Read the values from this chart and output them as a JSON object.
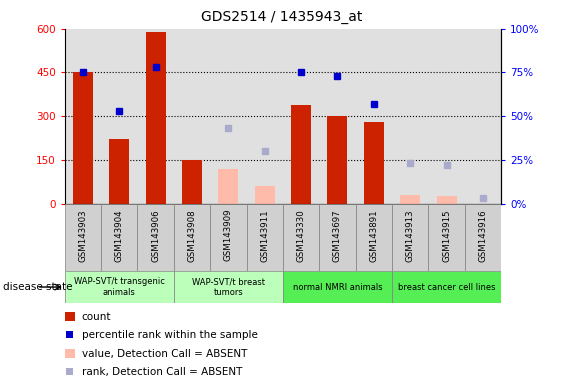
{
  "title": "GDS2514 / 1435943_at",
  "samples": [
    "GSM143903",
    "GSM143904",
    "GSM143906",
    "GSM143908",
    "GSM143909",
    "GSM143911",
    "GSM143330",
    "GSM143697",
    "GSM143891",
    "GSM143913",
    "GSM143915",
    "GSM143916"
  ],
  "count": [
    450,
    220,
    590,
    150,
    null,
    null,
    340,
    300,
    280,
    null,
    null,
    null
  ],
  "count_absent": [
    null,
    null,
    null,
    null,
    120,
    60,
    null,
    null,
    null,
    30,
    25,
    null
  ],
  "percentile_rank": [
    75,
    53,
    78,
    null,
    null,
    null,
    75,
    73,
    57,
    null,
    null,
    null
  ],
  "percentile_rank_absent": [
    null,
    null,
    null,
    null,
    43,
    30,
    null,
    null,
    null,
    23,
    22,
    3
  ],
  "group_starts": [
    0,
    3,
    6,
    9
  ],
  "group_ends": [
    3,
    6,
    9,
    12
  ],
  "group_colors": [
    "#bbffbb",
    "#bbffbb",
    "#55ee55",
    "#55ee55"
  ],
  "group_labels": [
    "WAP-SVT/t transgenic\nanimals",
    "WAP-SVT/t breast\ntumors",
    "normal NMRI animals",
    "breast cancer cell lines"
  ],
  "ylim_left": [
    0,
    600
  ],
  "ylim_right": [
    0,
    100
  ],
  "yticks_left": [
    0,
    150,
    300,
    450,
    600
  ],
  "yticks_right": [
    0,
    25,
    50,
    75,
    100
  ],
  "ytick_labels_right": [
    "0%",
    "25%",
    "50%",
    "75%",
    "100%"
  ],
  "bar_color": "#cc2200",
  "bar_absent_color": "#ffbbaa",
  "dot_color": "#0000cc",
  "dot_absent_color": "#aaaacc",
  "bg_color": "#e0e0e0",
  "tick_bg_color": "#d0d0d0",
  "gridline_color": "black",
  "gridline_style": "dotted"
}
